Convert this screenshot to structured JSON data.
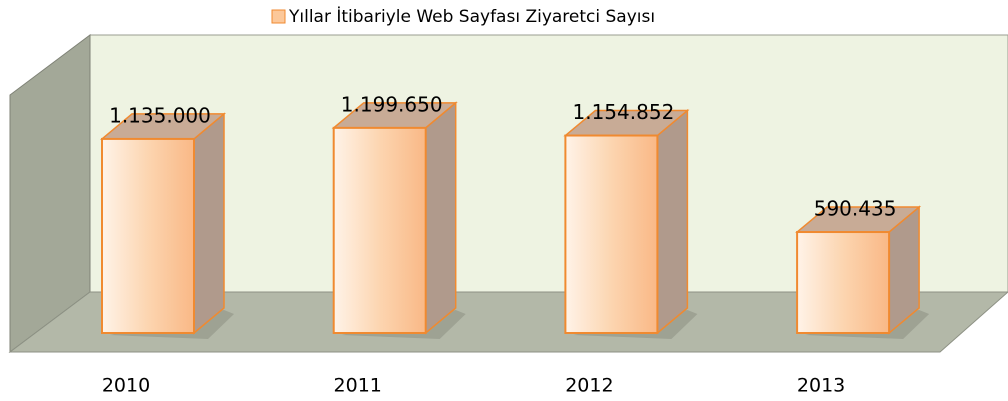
{
  "chart_data": {
    "type": "bar3d",
    "categories": [
      "2010",
      "2011",
      "2012",
      "2013"
    ],
    "series": [
      {
        "name": "Yıllar İtibariyle Web Sayfası Ziyaretci Sayısı",
        "color": "#fcc89a",
        "values": [
          1135000,
          1199650,
          1154852,
          590435
        ],
        "value_labels": [
          "1.135.000",
          "1.199.650",
          "1.154.852",
          "590.435"
        ]
      }
    ],
    "legend": "top"
  }
}
